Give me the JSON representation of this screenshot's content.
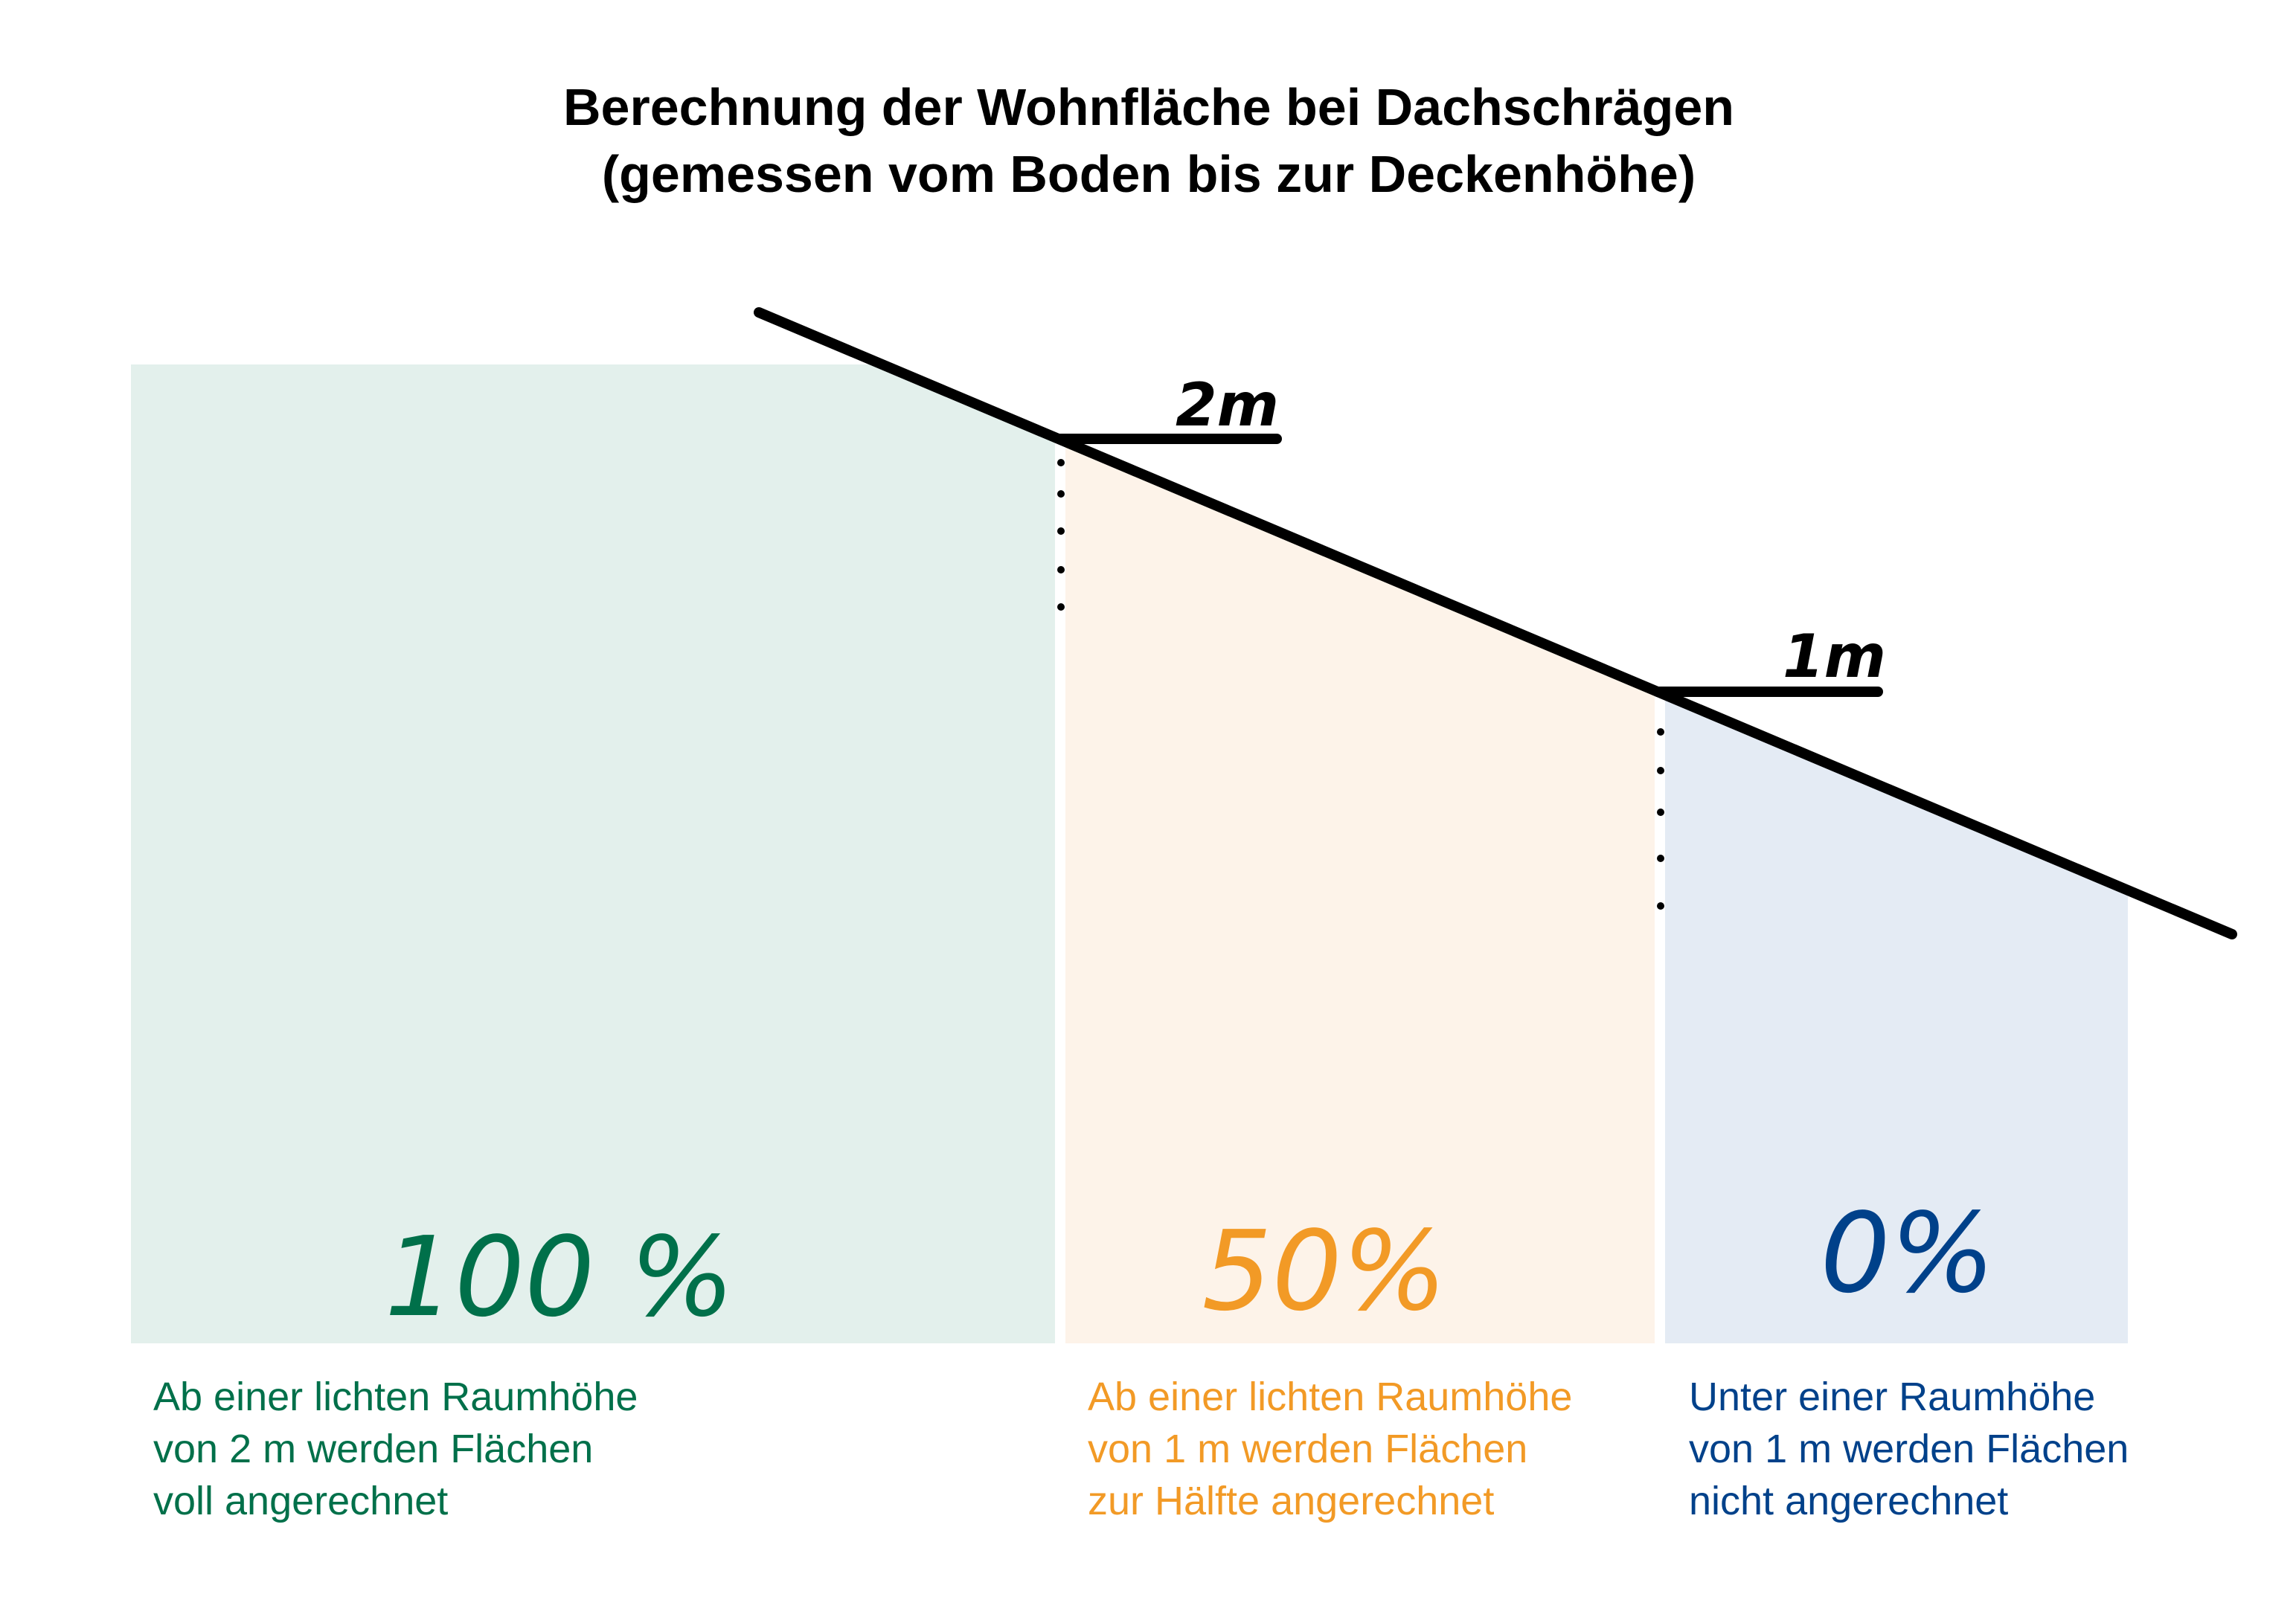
{
  "title": {
    "line1": "Berechnung der Wohnfläche bei Dachschrägen",
    "line2": "(gemessen vom Boden bis zur Deckenhöhe)"
  },
  "height_markers": {
    "upper": "2m",
    "lower": "1m"
  },
  "zones": [
    {
      "percent": "100 %",
      "color": "#00704a",
      "fill": "#e3f0ec",
      "description": [
        "Ab einer lichten Raumhöhe",
        "von 2 m werden Flächen",
        "voll angerechnet"
      ]
    },
    {
      "percent": "50%",
      "color": "#f29a26",
      "fill": "#fdf3e9",
      "description": [
        "Ab einer lichten Raumhöhe",
        "von 1 m werden Flächen",
        "zur Hälfte angerechnet"
      ]
    },
    {
      "percent": "0%",
      "color": "#00418a",
      "fill": "#e4ebf4",
      "description": [
        "Unter einer Raumhöhe",
        "von 1 m werden Flächen",
        "nicht angerechnet"
      ]
    }
  ]
}
